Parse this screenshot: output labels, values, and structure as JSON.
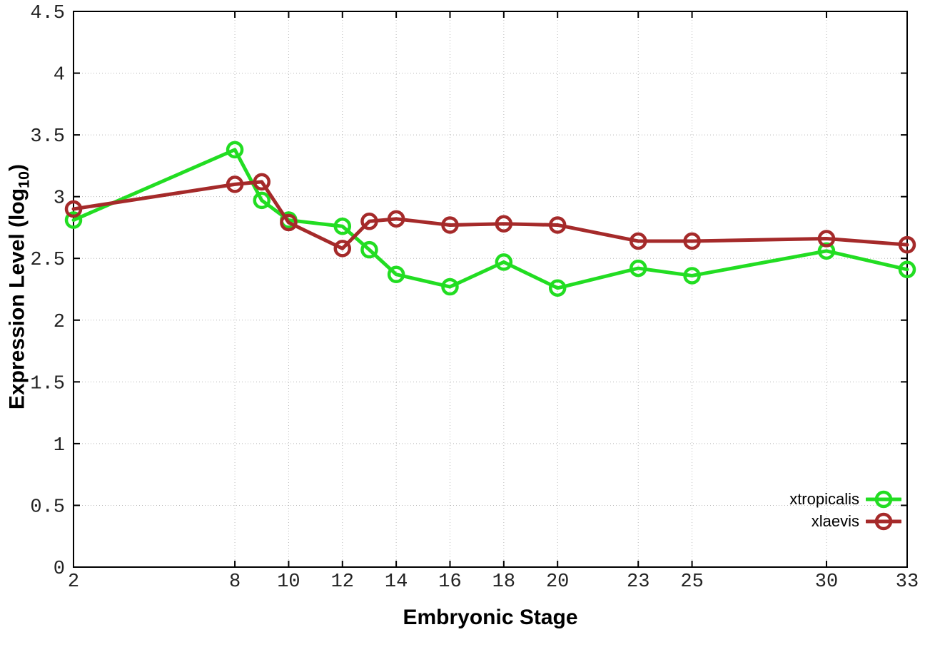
{
  "chart_data": {
    "type": "line",
    "title": "",
    "xlabel": "Embryonic Stage",
    "ylabel": {
      "prefix": "Expression Level (log",
      "sub": "10",
      "suffix": ")"
    },
    "x": [
      2,
      8,
      9,
      10,
      12,
      13,
      14,
      16,
      18,
      20,
      23,
      25,
      30,
      33
    ],
    "series": [
      {
        "name": "xtropicalis",
        "color": "#22dd22",
        "values": [
          2.81,
          3.38,
          2.97,
          2.81,
          2.76,
          2.57,
          2.37,
          2.27,
          2.47,
          2.26,
          2.42,
          2.36,
          2.56,
          2.41
        ]
      },
      {
        "name": "xlaevis",
        "color": "#a52a2a",
        "values": [
          2.9,
          3.1,
          3.12,
          2.79,
          2.58,
          2.8,
          2.82,
          2.77,
          2.78,
          2.77,
          2.64,
          2.64,
          2.66,
          2.61
        ]
      }
    ],
    "x_ticks": {
      "values": [
        2,
        8,
        10,
        12,
        14,
        16,
        18,
        20,
        23,
        25,
        30,
        33
      ],
      "labels": [
        "2",
        "8",
        "10",
        "12",
        "14",
        "16",
        "18",
        "20",
        "23",
        "25",
        "30",
        "33"
      ]
    },
    "y_ticks": {
      "values": [
        0,
        0.5,
        1,
        1.5,
        2,
        2.5,
        3,
        3.5,
        4,
        4.5
      ],
      "labels": [
        "0",
        "0.5",
        "1",
        "1.5",
        "2",
        "2.5",
        "3",
        "3.5",
        "4",
        "4.5"
      ]
    },
    "x_range": [
      2,
      33
    ],
    "y_range": [
      0,
      4.5
    ],
    "grid": true,
    "legend_position": "bottom-right",
    "colors": {
      "axis": "#000000",
      "grid": "#b8b8b8",
      "tick_text": "#222222",
      "background": "#ffffff"
    }
  }
}
